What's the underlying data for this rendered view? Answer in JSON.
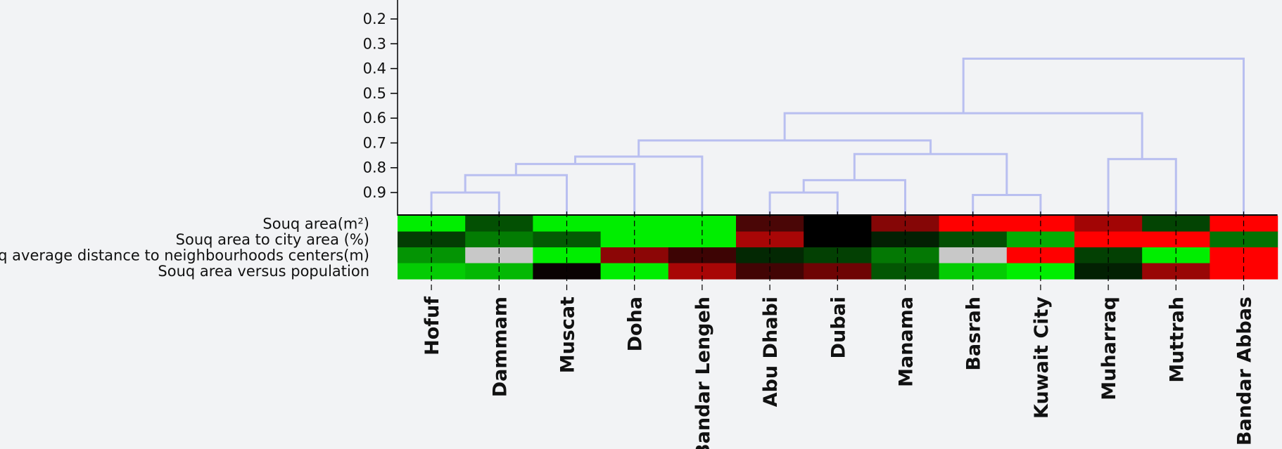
{
  "chart_data": {
    "type": "heatmap",
    "title": "",
    "dendrogram_axis": {
      "ticks": [
        "0.2",
        "0.3",
        "0.4",
        "0.5",
        "0.6",
        "0.7",
        "0.8",
        "0.9"
      ],
      "range": [
        0.15,
        1.0
      ],
      "orientation": "inverted"
    },
    "rows": [
      "Souq area(m²)",
      "Souq area to city area (%)",
      "Souq average distance to neighbourhoods centers(m)",
      "Souq area versus population"
    ],
    "columns": [
      "Hofuf",
      "Dammam",
      "Muscat",
      "Doha",
      "Bandar Lengeh",
      "Abu Dhabi",
      "Dubai",
      "Manama",
      "Basrah",
      "Kuwait City",
      "Muharraq",
      "Muttrah",
      "Bandar Abbas"
    ],
    "cells": [
      [
        "#00ee00",
        "#035003",
        "#00ee00",
        "#00ee00",
        "#00ee00",
        "#4a0606",
        "#000000",
        "#850606",
        "#ff0000",
        "#ff0000",
        "#a20505",
        "#034403",
        "#ff0000"
      ],
      [
        "#033d03",
        "#037c03",
        "#035a03",
        "#00ee00",
        "#00ee00",
        "#a80606",
        "#000000",
        "#032003",
        "#034f03",
        "#04ad04",
        "#ff0000",
        "#ff0000",
        "#037203"
      ],
      [
        "#049404",
        "#c8c8c8",
        "#00ee00",
        "#8c0606",
        "#3d0404",
        "#032803",
        "#034003",
        "#047804",
        "#c8c8c8",
        "#ff0000",
        "#034003",
        "#00ee00",
        "#ff0000"
      ],
      [
        "#04cc04",
        "#04b804",
        "#0a0202",
        "#00ee00",
        "#a80606",
        "#420404",
        "#6e0404",
        "#035603",
        "#04cc04",
        "#00ee00",
        "#022002",
        "#990606",
        "#ff0000"
      ]
    ],
    "color_scale": [
      "#00ee00",
      "#000000",
      "#ff0000"
    ],
    "dendrogram": {
      "line_color": "#b9bff0",
      "merges": [
        {
          "left": "Hofuf",
          "right": "Dammam",
          "height": 0.9
        },
        {
          "left": "Abu Dhabi",
          "right": "Dubai",
          "height": 0.9
        },
        {
          "left": "Basrah",
          "right": "Kuwait City",
          "height": 0.91
        },
        {
          "left": "cluster(Hofuf,Dammam)",
          "right": "Muscat",
          "height": 0.83
        },
        {
          "left": "cluster(Abu Dhabi,Dubai)",
          "right": "Manama",
          "height": 0.85
        },
        {
          "left": "cluster(Hofuf..Muscat)",
          "right": "Doha",
          "height": 0.785
        },
        {
          "left": "cluster(Hofuf..Doha)",
          "right": "Bandar Lengeh",
          "height": 0.755
        },
        {
          "left": "cluster(Abu Dhabi..Manama)",
          "right": "cluster(Basrah,Kuwait City)",
          "height": 0.745
        },
        {
          "left": "Muharraq",
          "right": "Muttrah",
          "height": 0.765
        },
        {
          "left": "cluster(Hofuf..Bandar Lengeh)",
          "right": "cluster(Abu Dhabi..Kuwait City)",
          "height": 0.69
        },
        {
          "left": "cluster(Hofuf..Kuwait City)",
          "right": "cluster(Muharraq,Muttrah)",
          "height": 0.58
        },
        {
          "left": "cluster(Hofuf..Muttrah)",
          "right": "Bandar Abbas",
          "height": 0.36
        }
      ]
    }
  }
}
